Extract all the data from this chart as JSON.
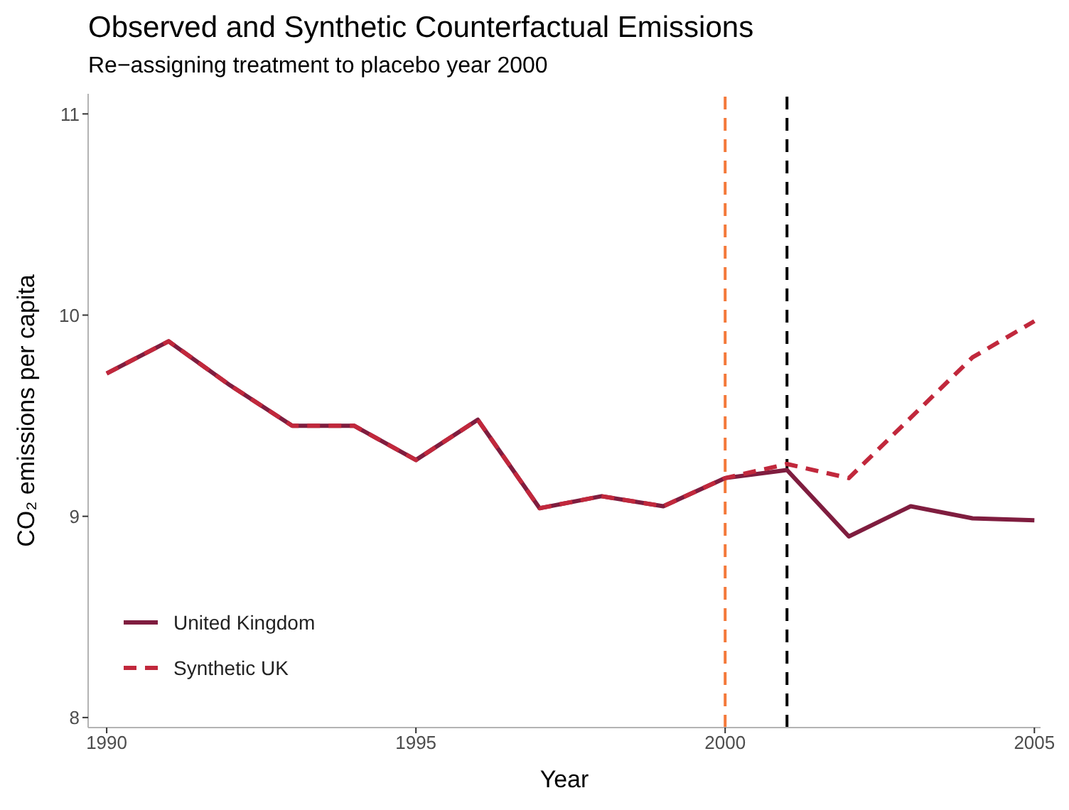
{
  "chart_data": {
    "type": "line",
    "title": "Observed and Synthetic Counterfactual Emissions",
    "subtitle": "Re−assigning treatment to placebo year 2000",
    "xlabel": "Year",
    "ylabel": "CO₂ emissions per capita",
    "x": [
      1990,
      1991,
      1992,
      1993,
      1994,
      1995,
      1996,
      1997,
      1998,
      1999,
      2000,
      2001,
      2002,
      2003,
      2004,
      2005
    ],
    "series": [
      {
        "name": "United Kingdom",
        "color": "#7f1d3f",
        "line_style": "solid",
        "values": [
          9.71,
          9.87,
          9.65,
          9.45,
          9.45,
          9.28,
          9.48,
          9.04,
          9.1,
          9.05,
          9.19,
          9.23,
          8.9,
          9.05,
          8.99,
          8.98
        ]
      },
      {
        "name": "Synthetic UK",
        "color": "#c1283c",
        "line_style": "dashed",
        "values": [
          9.71,
          9.87,
          9.65,
          9.45,
          9.45,
          9.28,
          9.48,
          9.04,
          9.1,
          9.05,
          9.19,
          9.26,
          9.19,
          9.49,
          9.79,
          9.97
        ]
      }
    ],
    "xlim": [
      1989.7,
      2005.1
    ],
    "xticks": [
      1990,
      1995,
      2000,
      2005
    ],
    "ylim": [
      7.95,
      11.1
    ],
    "yticks": [
      8,
      9,
      10,
      11
    ],
    "ref_lines": [
      {
        "axis": "x",
        "value": 2000,
        "color": "#f4793a",
        "line_style": "dashed"
      },
      {
        "axis": "x",
        "value": 2001,
        "color": "#000000",
        "line_style": "dashed"
      }
    ],
    "grid": false,
    "legend": "bottom left",
    "marker": "none"
  }
}
